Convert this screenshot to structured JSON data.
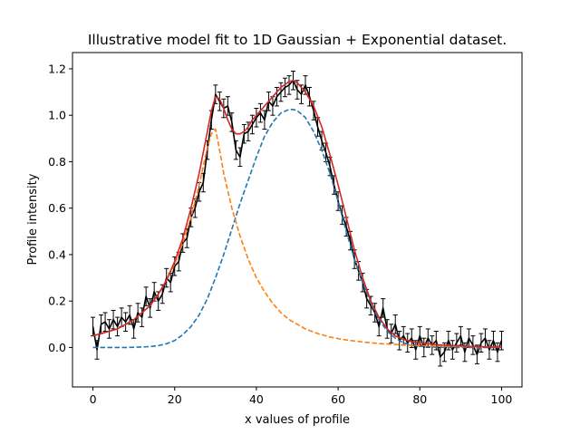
{
  "chart_data": {
    "type": "line",
    "title": "Illustrative model fit to 1D Gaussian + Exponential dataset.",
    "xlabel": "x values of profile",
    "ylabel": "Profile intensity",
    "xlim": [
      -5,
      105
    ],
    "ylim": [
      -0.17,
      1.27
    ],
    "xticks": [
      0,
      20,
      40,
      60,
      80,
      100
    ],
    "yticks": [
      0.0,
      0.2,
      0.4,
      0.6,
      0.8,
      1.0,
      1.2
    ],
    "grid": false,
    "legend": "none",
    "series": [
      {
        "kind": "data-with-errorbars",
        "color": "#000000",
        "error": 0.04,
        "x": [
          0,
          1,
          2,
          3,
          4,
          5,
          6,
          7,
          8,
          9,
          10,
          11,
          12,
          13,
          14,
          15,
          16,
          17,
          18,
          19,
          20,
          21,
          22,
          23,
          24,
          25,
          26,
          27,
          28,
          29,
          30,
          31,
          32,
          33,
          34,
          35,
          36,
          37,
          38,
          39,
          40,
          41,
          42,
          43,
          44,
          45,
          46,
          47,
          48,
          49,
          50,
          51,
          52,
          53,
          54,
          55,
          56,
          57,
          58,
          59,
          60,
          61,
          62,
          63,
          64,
          65,
          66,
          67,
          68,
          69,
          70,
          71,
          72,
          73,
          74,
          75,
          76,
          77,
          78,
          79,
          80,
          81,
          82,
          83,
          84,
          85,
          86,
          87,
          88,
          89,
          90,
          91,
          92,
          93,
          94,
          95,
          96,
          97,
          98,
          99,
          100
        ],
        "y": [
          0.09,
          -0.01,
          0.1,
          0.11,
          0.08,
          0.12,
          0.09,
          0.13,
          0.11,
          0.14,
          0.08,
          0.15,
          0.13,
          0.22,
          0.17,
          0.24,
          0.2,
          0.23,
          0.3,
          0.28,
          0.35,
          0.37,
          0.45,
          0.47,
          0.56,
          0.6,
          0.67,
          0.71,
          0.85,
          0.98,
          1.09,
          1.06,
          1.03,
          1.04,
          0.97,
          0.85,
          0.82,
          0.92,
          0.93,
          0.96,
          0.99,
          1.01,
          0.98,
          1.06,
          1.04,
          1.08,
          1.1,
          1.12,
          1.13,
          1.15,
          1.11,
          1.09,
          1.13,
          1.08,
          1.02,
          0.95,
          0.89,
          0.84,
          0.78,
          0.7,
          0.63,
          0.57,
          0.52,
          0.46,
          0.38,
          0.33,
          0.28,
          0.21,
          0.18,
          0.15,
          0.09,
          0.17,
          0.08,
          0.06,
          0.1,
          0.03,
          0.05,
          0.02,
          0.04,
          -0.01,
          0.05,
          0.0,
          0.04,
          0.01,
          0.03,
          -0.04,
          -0.02,
          0.03,
          -0.01,
          0.02,
          0.05,
          -0.02,
          0.04,
          0.01,
          -0.03,
          0.02,
          0.04,
          -0.01,
          0.03,
          -0.02,
          0.03
        ]
      },
      {
        "kind": "model-total",
        "style": "solid",
        "color": "#d62728",
        "x": [
          0,
          2,
          4,
          6,
          8,
          10,
          12,
          14,
          16,
          18,
          20,
          22,
          24,
          26,
          27,
          28,
          29,
          30,
          31,
          32,
          33,
          34,
          35,
          36,
          37,
          38,
          39,
          40,
          42,
          44,
          46,
          48,
          49,
          50,
          52,
          54,
          56,
          58,
          60,
          62,
          64,
          66,
          68,
          70,
          72,
          74,
          76,
          78,
          80,
          84,
          88,
          92,
          96,
          100
        ],
        "y": [
          0.05,
          0.06,
          0.07,
          0.08,
          0.1,
          0.12,
          0.15,
          0.18,
          0.23,
          0.29,
          0.37,
          0.47,
          0.6,
          0.75,
          0.84,
          0.93,
          1.02,
          1.08,
          1.07,
          1.03,
          0.98,
          0.94,
          0.92,
          0.92,
          0.93,
          0.95,
          0.98,
          1.0,
          1.04,
          1.08,
          1.12,
          1.145,
          1.15,
          1.14,
          1.1,
          1.04,
          0.95,
          0.83,
          0.7,
          0.56,
          0.42,
          0.3,
          0.2,
          0.13,
          0.08,
          0.05,
          0.035,
          0.025,
          0.02,
          0.012,
          0.008,
          0.005,
          0.003,
          0.002
        ]
      },
      {
        "kind": "gaussian-component",
        "style": "dashed",
        "color": "#1f77b4",
        "x": [
          0,
          4,
          8,
          12,
          14,
          16,
          18,
          20,
          22,
          24,
          26,
          28,
          30,
          32,
          34,
          36,
          38,
          40,
          42,
          44,
          46,
          48,
          49,
          50,
          52,
          54,
          56,
          58,
          60,
          62,
          64,
          66,
          68,
          70,
          72,
          74,
          76,
          78,
          80,
          84,
          88,
          92,
          96,
          100
        ],
        "y": [
          0.0,
          0.0,
          0.0,
          0.002,
          0.004,
          0.008,
          0.016,
          0.03,
          0.055,
          0.09,
          0.14,
          0.21,
          0.3,
          0.4,
          0.51,
          0.62,
          0.72,
          0.82,
          0.91,
          0.97,
          1.01,
          1.025,
          1.025,
          1.02,
          0.99,
          0.93,
          0.85,
          0.75,
          0.63,
          0.5,
          0.38,
          0.28,
          0.19,
          0.12,
          0.07,
          0.04,
          0.02,
          0.01,
          0.005,
          0.001,
          0.0,
          0.0,
          0.0,
          0.0
        ]
      },
      {
        "kind": "exponential-component",
        "style": "dashed",
        "color": "#ff7f0e",
        "x": [
          0,
          2,
          4,
          6,
          8,
          10,
          12,
          14,
          16,
          18,
          20,
          22,
          24,
          26,
          27,
          28,
          29,
          30,
          31,
          32,
          34,
          36,
          38,
          40,
          42,
          44,
          46,
          48,
          50,
          52,
          55,
          58,
          61,
          64,
          67,
          70,
          75,
          80,
          85,
          90,
          95,
          100
        ],
        "y": [
          0.05,
          0.06,
          0.07,
          0.08,
          0.1,
          0.12,
          0.15,
          0.18,
          0.23,
          0.29,
          0.36,
          0.45,
          0.56,
          0.7,
          0.78,
          0.86,
          0.92,
          0.94,
          0.85,
          0.75,
          0.6,
          0.48,
          0.38,
          0.3,
          0.24,
          0.19,
          0.15,
          0.12,
          0.1,
          0.08,
          0.06,
          0.045,
          0.035,
          0.028,
          0.022,
          0.017,
          0.012,
          0.008,
          0.006,
          0.004,
          0.003,
          0.002
        ]
      }
    ]
  }
}
